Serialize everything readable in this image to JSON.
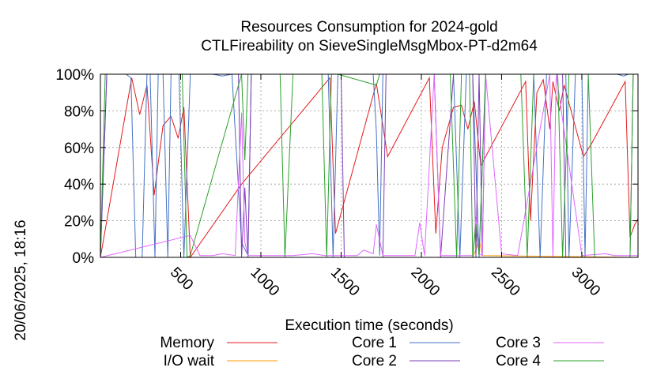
{
  "chart_data": {
    "type": "line",
    "title_line1": "Resources Consumption for 2024-gold",
    "title_line2": "CTLFireability on SieveSingleMsgMbox-PT-d2m64",
    "xlabel": "Execution time (seconds)",
    "ylabel": "",
    "side_label": "20/06/2025, 18:16",
    "xlim": [
      0,
      3350
    ],
    "ylim": [
      0,
      100
    ],
    "x_ticks": [
      500,
      1000,
      1500,
      2000,
      2500,
      3000
    ],
    "y_ticks": [
      0,
      20,
      40,
      60,
      80,
      100
    ],
    "y_tick_labels": [
      "0%",
      "20%",
      "40%",
      "60%",
      "80%",
      "100%"
    ],
    "grid": true,
    "legend_position": "bottom",
    "series": [
      {
        "name": "Memory",
        "color": "#e41a1c",
        "x": [
          0,
          195,
          245,
          290,
          335,
          390,
          440,
          485,
          520,
          560,
          880,
          1430,
          1465,
          1720,
          1790,
          2050,
          2090,
          2130,
          2200,
          2250,
          2290,
          2330,
          2370,
          2650,
          2680,
          2720,
          2760,
          2800,
          2820,
          2860,
          2890,
          3010,
          3060,
          3270,
          3300,
          3330,
          3350
        ],
        "y": [
          0,
          98,
          78,
          94,
          34,
          72,
          77,
          65,
          82,
          0,
          40,
          98,
          13,
          95,
          55,
          98,
          13,
          60,
          82,
          83,
          70,
          85,
          50,
          96,
          20,
          90,
          97,
          70,
          96,
          80,
          94,
          55,
          62,
          96,
          11,
          18,
          21
        ]
      },
      {
        "name": "I/O wait",
        "color": "#ff9900",
        "x": [
          0,
          2320,
          2340,
          2360,
          2380,
          3350
        ],
        "y": [
          0,
          0,
          4,
          10,
          1,
          0
        ]
      },
      {
        "name": "Core 1",
        "color": "#4472c4",
        "x": [
          0,
          40,
          60,
          160,
          190,
          220,
          260,
          290,
          310,
          340,
          360,
          390,
          420,
          440,
          490,
          520,
          560,
          600,
          640,
          700,
          760,
          820,
          880,
          920,
          940,
          1000,
          1040,
          1200,
          1240,
          1420,
          1450,
          1480,
          1510,
          1700,
          1720,
          1740,
          1760,
          1780,
          2200,
          2240,
          2280,
          2320,
          2360,
          2400,
          2440,
          2480,
          2700,
          2740,
          2780,
          2820,
          2900,
          2920,
          2960,
          3000,
          3020,
          3040,
          3060,
          3180,
          3220,
          3260,
          3290,
          3320,
          3350
        ],
        "y": [
          0,
          100,
          100,
          100,
          98,
          0,
          0,
          100,
          100,
          0,
          100,
          100,
          0,
          100,
          100,
          0,
          100,
          100,
          100,
          100,
          99,
          100,
          8,
          1,
          100,
          100,
          100,
          100,
          100,
          100,
          0,
          100,
          100,
          100,
          68,
          1,
          100,
          100,
          100,
          0,
          100,
          100,
          0,
          100,
          100,
          100,
          100,
          0,
          100,
          100,
          100,
          0,
          100,
          100,
          0,
          100,
          100,
          100,
          100,
          99,
          100,
          100,
          100
        ]
      },
      {
        "name": "Core 2",
        "color": "#7b3fb5",
        "x": [
          0,
          40,
          60,
          860,
          880,
          900,
          920,
          940,
          980,
          1500,
          1520,
          1760,
          1780,
          1800,
          2080,
          2120,
          2200,
          2320,
          2340,
          2360,
          2380,
          2400,
          2880,
          2900,
          3300,
          3320,
          3350
        ],
        "y": [
          0,
          100,
          100,
          100,
          0,
          38,
          0,
          100,
          100,
          100,
          0,
          0,
          100,
          100,
          100,
          0,
          100,
          100,
          0,
          100,
          1,
          100,
          100,
          0,
          0,
          100,
          100
        ]
      },
      {
        "name": "Core 3",
        "color": "#e066ff",
        "x": [
          0,
          560,
          620,
          700,
          760,
          840,
          880,
          900,
          920,
          960,
          1200,
          1320,
          1400,
          1600,
          1640,
          1700,
          1720,
          1760,
          1960,
          1990,
          2020,
          2080,
          2120,
          2320,
          2340,
          2360,
          2380,
          2400,
          2500,
          2600,
          2800,
          2820,
          2840,
          3000,
          3150,
          3200,
          3350
        ],
        "y": [
          0,
          12,
          1,
          1,
          2,
          1,
          79,
          8,
          1,
          1,
          1,
          2,
          1,
          1,
          4,
          2,
          18,
          1,
          1,
          19,
          1,
          100,
          1,
          1,
          22,
          2,
          1,
          100,
          2,
          1,
          100,
          0,
          100,
          1,
          2,
          1,
          1
        ]
      },
      {
        "name": "Core 4",
        "color": "#2ca02c",
        "x": [
          0,
          30,
          50,
          510,
          540,
          560,
          880,
          900,
          920,
          960,
          1120,
          1150,
          1200,
          1380,
          1410,
          1440,
          1480,
          1720,
          1740,
          1780,
          2180,
          2220,
          2250,
          2300,
          2320,
          2340,
          2360,
          2400,
          2440,
          2620,
          2660,
          2700,
          2850,
          2880,
          2920,
          3040,
          3080,
          3300,
          3320,
          3350
        ],
        "y": [
          0,
          100,
          100,
          100,
          0,
          1,
          100,
          53,
          100,
          100,
          100,
          0,
          100,
          100,
          0,
          100,
          100,
          94,
          100,
          100,
          100,
          0,
          100,
          100,
          0,
          18,
          1,
          100,
          100,
          100,
          0,
          100,
          100,
          0,
          100,
          100,
          0,
          0,
          100,
          100
        ]
      }
    ]
  }
}
